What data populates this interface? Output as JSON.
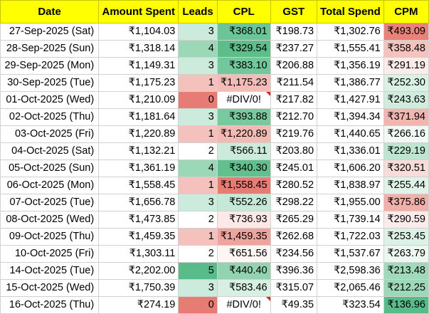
{
  "headers": [
    "Date",
    "Amount Spent",
    "Leads",
    "CPL",
    "GST",
    "Total Spend",
    "CPM"
  ],
  "rows": [
    {
      "date": "27-Sep-2025 (Sat)",
      "amount": "₹1,104.03",
      "leads": "3",
      "cpl": "₹368.01",
      "gst": "₹198.73",
      "total": "₹1,302.76",
      "cpm": "₹493.09",
      "leads_bg": "#cdebdc",
      "cpl_bg": "#6cc596",
      "cpm_bg": "#e9837a"
    },
    {
      "date": "28-Sep-2025 (Sun)",
      "amount": "₹1,318.14",
      "leads": "4",
      "cpl": "₹329.54",
      "gst": "₹237.27",
      "total": "₹1,555.41",
      "cpm": "₹358.48",
      "leads_bg": "#9ad8b7",
      "cpl_bg": "#5dbe8a",
      "cpm_bg": "#f4c3be"
    },
    {
      "date": "29-Sep-2025 (Mon)",
      "amount": "₹1,149.31",
      "leads": "3",
      "cpl": "₹383.10",
      "gst": "₹206.88",
      "total": "₹1,356.19",
      "cpm": "₹291.19",
      "leads_bg": "#cdebdc",
      "cpl_bg": "#73c89b",
      "cpm_bg": "#fbebe9"
    },
    {
      "date": "30-Sep-2025 (Tue)",
      "amount": "₹1,175.23",
      "leads": "1",
      "cpl": "₹1,175.23",
      "gst": "₹211.54",
      "total": "₹1,386.77",
      "cpm": "₹252.30",
      "leads_bg": "#f4c1bc",
      "cpl_bg": "#f3bcb6",
      "cpm_bg": "#dcf1e6"
    },
    {
      "date": "01-Oct-2025 (Wed)",
      "amount": "₹1,210.09",
      "leads": "0",
      "cpl": "#DIV/0!",
      "gst": "₹217.82",
      "total": "₹1,427.91",
      "cpm": "₹243.63",
      "leads_bg": "#e67c73",
      "cpl_bg": "#ffffff",
      "cpm_bg": "#cfecdd",
      "cpl_err": true
    },
    {
      "date": "02-Oct-2025 (Thu)",
      "amount": "₹1,181.64",
      "leads": "3",
      "cpl": "₹393.88",
      "gst": "₹212.70",
      "total": "₹1,394.34",
      "cpm": "₹371.94",
      "leads_bg": "#cdebdc",
      "cpl_bg": "#78ca9e",
      "cpm_bg": "#f2b6b0"
    },
    {
      "date": "03-Oct-2025 (Fri)",
      "amount": "₹1,220.89",
      "leads": "1",
      "cpl": "₹1,220.89",
      "gst": "₹219.76",
      "total": "₹1,440.65",
      "cpm": "₹266.16",
      "leads_bg": "#f4c1bc",
      "cpl_bg": "#f3b9b3",
      "cpm_bg": "#f1faf5"
    },
    {
      "date": "04-Oct-2025 (Sat)",
      "amount": "₹1,132.21",
      "leads": "2",
      "cpl": "₹566.11",
      "gst": "₹203.80",
      "total": "₹1,336.01",
      "cpm": "₹229.19",
      "leads_bg": "#ffffff",
      "cpl_bg": "#cdebdc",
      "cpm_bg": "#bde5cf"
    },
    {
      "date": "05-Oct-2025 (Sun)",
      "amount": "₹1,361.19",
      "leads": "4",
      "cpl": "₹340.30",
      "gst": "₹245.01",
      "total": "₹1,606.20",
      "cpm": "₹320.51",
      "leads_bg": "#9ad8b7",
      "cpl_bg": "#61c08d",
      "cpm_bg": "#f8dcd9"
    },
    {
      "date": "06-Oct-2025 (Mon)",
      "amount": "₹1,558.45",
      "leads": "1",
      "cpl": "₹1,558.45",
      "gst": "₹280.52",
      "total": "₹1,838.97",
      "cpm": "₹255.44",
      "leads_bg": "#f4c1bc",
      "cpl_bg": "#e67c73",
      "cpm_bg": "#e0f3e9"
    },
    {
      "date": "07-Oct-2025 (Tue)",
      "amount": "₹1,656.78",
      "leads": "3",
      "cpl": "₹552.26",
      "gst": "₹298.22",
      "total": "₹1,955.00",
      "cpm": "₹375.86",
      "leads_bg": "#cdebdc",
      "cpl_bg": "#c6e8d6",
      "cpm_bg": "#f1b0aa"
    },
    {
      "date": "08-Oct-2025 (Wed)",
      "amount": "₹1,473.85",
      "leads": "2",
      "cpl": "₹736.93",
      "gst": "₹265.29",
      "total": "₹1,739.14",
      "cpm": "₹290.59",
      "leads_bg": "#ffffff",
      "cpl_bg": "#fce9e7",
      "cpm_bg": "#fbeceb"
    },
    {
      "date": "09-Oct-2025 (Thu)",
      "amount": "₹1,459.35",
      "leads": "1",
      "cpl": "₹1,459.35",
      "gst": "₹262.68",
      "total": "₹1,722.03",
      "cpm": "₹253.45",
      "leads_bg": "#f4c1bc",
      "cpl_bg": "#eea49d",
      "cpm_bg": "#ddf2e7"
    },
    {
      "date": "10-Oct-2025 (Fri)",
      "amount": "₹1,303.11",
      "leads": "2",
      "cpl": "₹651.56",
      "gst": "₹234.56",
      "total": "₹1,537.67",
      "cpm": "₹263.79",
      "leads_bg": "#ffffff",
      "cpl_bg": "#fef6f5",
      "cpm_bg": "#edf8f2"
    },
    {
      "date": "14-Oct-2025 (Tue)",
      "amount": "₹2,202.00",
      "leads": "5",
      "cpl": "₹440.40",
      "gst": "₹396.36",
      "total": "₹2,598.36",
      "cpm": "₹213.48",
      "leads_bg": "#57bb8a",
      "cpl_bg": "#92d4b1",
      "cpm_bg": "#9fdabb"
    },
    {
      "date": "15-Oct-2025 (Wed)",
      "amount": "₹1,750.39",
      "leads": "3",
      "cpl": "₹583.46",
      "gst": "₹315.07",
      "total": "₹2,065.46",
      "cpm": "₹212.25",
      "leads_bg": "#cdebdc",
      "cpl_bg": "#d8f0e3",
      "cpm_bg": "#9dd9b9"
    },
    {
      "date": "16-Oct-2025 (Thu)",
      "amount": "₹274.19",
      "leads": "0",
      "cpl": "#DIV/0!",
      "gst": "₹49.35",
      "total": "₹323.54",
      "cpm": "₹136.96",
      "leads_bg": "#e67c73",
      "cpl_bg": "#ffffff",
      "cpm_bg": "#57bb8a",
      "cpl_err": true
    }
  ]
}
